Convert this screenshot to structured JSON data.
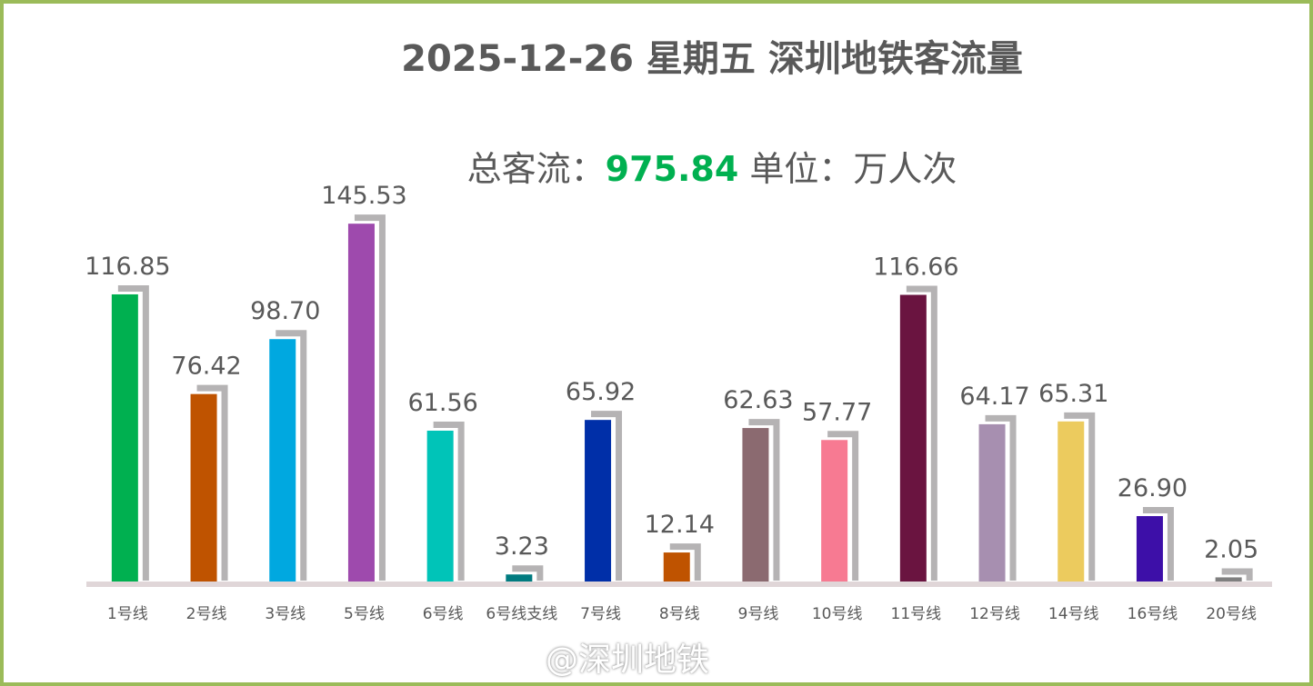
{
  "chart_data": {
    "type": "bar",
    "title": "2025-12-26 星期五 深圳地铁客流量",
    "subtitle": {
      "prefix": "总客流：",
      "total": "975.84",
      "unit": " 单位：万人次"
    },
    "categories": [
      "1号线",
      "2号线",
      "3号线",
      "5号线",
      "6号线",
      "6号线支线",
      "7号线",
      "8号线",
      "9号线",
      "10号线",
      "11号线",
      "12号线",
      "14号线",
      "16号线",
      "20号线"
    ],
    "values": [
      116.85,
      76.42,
      98.7,
      145.53,
      61.56,
      3.23,
      65.92,
      12.14,
      62.63,
      57.77,
      116.66,
      64.17,
      65.31,
      26.9,
      2.05
    ],
    "colors": [
      "#00b050",
      "#bf5300",
      "#00a8e0",
      "#9e4aad",
      "#00c4b8",
      "#007b80",
      "#002fa8",
      "#bf5300",
      "#8b6a70",
      "#f77a92",
      "#6a1440",
      "#a78fb0",
      "#eccb5e",
      "#3d0fa8",
      "#7f7f7f"
    ],
    "ylim": [
      0,
      150
    ],
    "grid": false,
    "legend": "none"
  },
  "watermark": "@深圳地铁"
}
